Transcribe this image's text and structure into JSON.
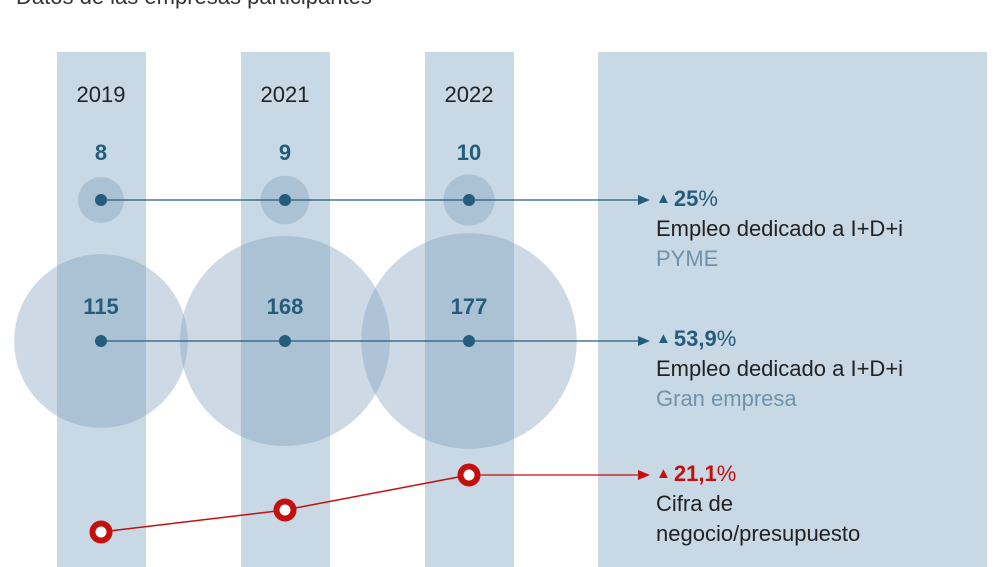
{
  "subtitle": "Datos de las empresas participantes",
  "colors": {
    "column": "#c8d8e4",
    "bubble": "#7c9fbc",
    "blue": "#245d7c",
    "red": "#c40f0f"
  },
  "chart_data": {
    "type": "bubble-timeline",
    "categories": [
      "2019",
      "2021",
      "2022"
    ],
    "series": [
      {
        "key": "pyme",
        "values": [
          8,
          9,
          10
        ],
        "change": "25",
        "label": "Empleo dedicado a I+D+i",
        "sublabel": "PYME"
      },
      {
        "key": "gran",
        "values": [
          115,
          168,
          177
        ],
        "change": "53,9",
        "label": "Empleo dedicado a I+D+i",
        "sublabel": "Gran empresa"
      },
      {
        "key": "negocio",
        "change": "21,1",
        "label_line1": "Cifra de",
        "label_line2": "negocio/presupuesto"
      }
    ],
    "percent_sign": "%",
    "up_icon": "triangle-up-icon"
  }
}
